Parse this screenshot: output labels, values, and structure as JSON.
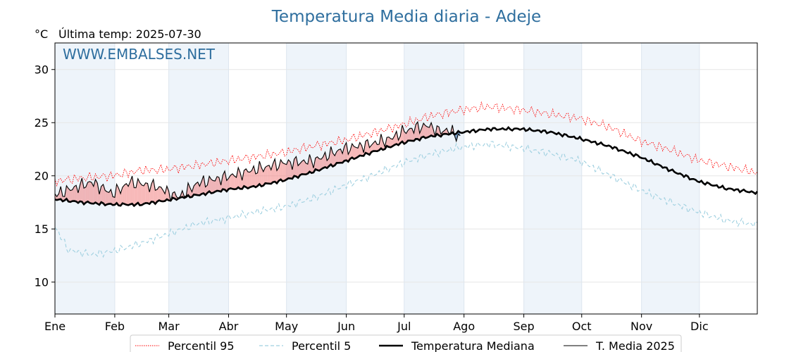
{
  "title": "Temperatura Media diaria - Adeje",
  "unit": "°C",
  "last_temp_label": "Última temp: 2025-07-30",
  "watermark": "WWW.EMBALSES.NET",
  "colors": {
    "title": "#2e6e9e",
    "p95": "#ff0000",
    "p5": "#9fd0e0",
    "median": "#000000",
    "current": "#000000",
    "fill_above": "#f08080",
    "fill_below": "#4a7bb0",
    "month_band": "#eef4fa"
  },
  "chart_data": {
    "type": "line",
    "xlabel": "",
    "ylabel": "°C",
    "ylim": [
      7,
      32.5
    ],
    "yticks": [
      10,
      15,
      20,
      25,
      30
    ],
    "xlim": [
      1,
      365
    ],
    "grid": true,
    "month_ticks": [
      "Ene",
      "Feb",
      "Mar",
      "Abr",
      "May",
      "Jun",
      "Jul",
      "Ago",
      "Sep",
      "Oct",
      "Nov",
      "Dic"
    ],
    "month_start_days": [
      1,
      32,
      60,
      91,
      121,
      152,
      182,
      213,
      244,
      274,
      305,
      335
    ],
    "legend_position": "bottom-center",
    "x_units": "day of year",
    "series": [
      {
        "name": "Percentil 95",
        "key": "p95",
        "style": "dotted",
        "points": [
          [
            1,
            19.5
          ],
          [
            15,
            19.8
          ],
          [
            31,
            20.0
          ],
          [
            45,
            20.5
          ],
          [
            59,
            20.6
          ],
          [
            75,
            21.0
          ],
          [
            90,
            21.4
          ],
          [
            105,
            21.8
          ],
          [
            120,
            22.2
          ],
          [
            135,
            22.8
          ],
          [
            150,
            23.3
          ],
          [
            165,
            24.0
          ],
          [
            181,
            24.8
          ],
          [
            195,
            25.6
          ],
          [
            212,
            26.2
          ],
          [
            226,
            26.5
          ],
          [
            243,
            26.2
          ],
          [
            258,
            25.8
          ],
          [
            273,
            25.4
          ],
          [
            288,
            24.6
          ],
          [
            304,
            23.3
          ],
          [
            319,
            22.5
          ],
          [
            334,
            21.5
          ],
          [
            349,
            20.9
          ],
          [
            365,
            20.3
          ]
        ]
      },
      {
        "name": "Percentil 5",
        "key": "p5",
        "style": "dashed",
        "points": [
          [
            1,
            15.2
          ],
          [
            8,
            13.0
          ],
          [
            20,
            12.6
          ],
          [
            31,
            12.9
          ],
          [
            45,
            13.6
          ],
          [
            59,
            14.5
          ],
          [
            75,
            15.5
          ],
          [
            90,
            16.0
          ],
          [
            105,
            16.6
          ],
          [
            120,
            17.1
          ],
          [
            135,
            17.9
          ],
          [
            150,
            19.0
          ],
          [
            165,
            20.0
          ],
          [
            181,
            21.2
          ],
          [
            195,
            22.0
          ],
          [
            212,
            22.7
          ],
          [
            226,
            23.0
          ],
          [
            243,
            22.6
          ],
          [
            258,
            22.1
          ],
          [
            273,
            21.4
          ],
          [
            288,
            20.1
          ],
          [
            304,
            18.7
          ],
          [
            319,
            17.6
          ],
          [
            334,
            16.6
          ],
          [
            349,
            15.8
          ],
          [
            365,
            15.4
          ]
        ]
      },
      {
        "name": "Temperatura Mediana",
        "key": "median",
        "style": "solid-thick",
        "points": [
          [
            1,
            17.8
          ],
          [
            15,
            17.5
          ],
          [
            31,
            17.3
          ],
          [
            45,
            17.3
          ],
          [
            59,
            17.7
          ],
          [
            75,
            18.2
          ],
          [
            90,
            18.7
          ],
          [
            105,
            19.0
          ],
          [
            120,
            19.6
          ],
          [
            135,
            20.4
          ],
          [
            150,
            21.3
          ],
          [
            165,
            22.2
          ],
          [
            181,
            23.1
          ],
          [
            195,
            23.7
          ],
          [
            212,
            24.1
          ],
          [
            226,
            24.4
          ],
          [
            243,
            24.4
          ],
          [
            258,
            24.1
          ],
          [
            273,
            23.5
          ],
          [
            288,
            22.8
          ],
          [
            304,
            21.8
          ],
          [
            319,
            20.6
          ],
          [
            334,
            19.5
          ],
          [
            349,
            18.8
          ],
          [
            365,
            18.4
          ]
        ]
      },
      {
        "name": "T. Media 2025",
        "key": "current",
        "style": "solid",
        "points": [
          [
            1,
            18.2
          ],
          [
            10,
            18.8
          ],
          [
            20,
            19.4
          ],
          [
            31,
            18.3
          ],
          [
            40,
            19.4
          ],
          [
            50,
            19.1
          ],
          [
            55,
            18.9
          ],
          [
            60,
            18.4
          ],
          [
            65,
            18.0
          ],
          [
            75,
            19.3
          ],
          [
            90,
            19.9
          ],
          [
            105,
            20.6
          ],
          [
            120,
            21.2
          ],
          [
            135,
            21.4
          ],
          [
            150,
            22.5
          ],
          [
            165,
            23.0
          ],
          [
            175,
            23.5
          ],
          [
            182,
            24.2
          ],
          [
            190,
            24.6
          ],
          [
            195,
            24.7
          ],
          [
            200,
            24.2
          ],
          [
            205,
            24.3
          ],
          [
            211,
            23.6
          ]
        ]
      }
    ]
  },
  "legend": [
    {
      "key": "p95",
      "label": "Percentil 95"
    },
    {
      "key": "p5",
      "label": "Percentil 5"
    },
    {
      "key": "median",
      "label": "Temperatura Mediana"
    },
    {
      "key": "current",
      "label": "T. Media 2025"
    }
  ]
}
